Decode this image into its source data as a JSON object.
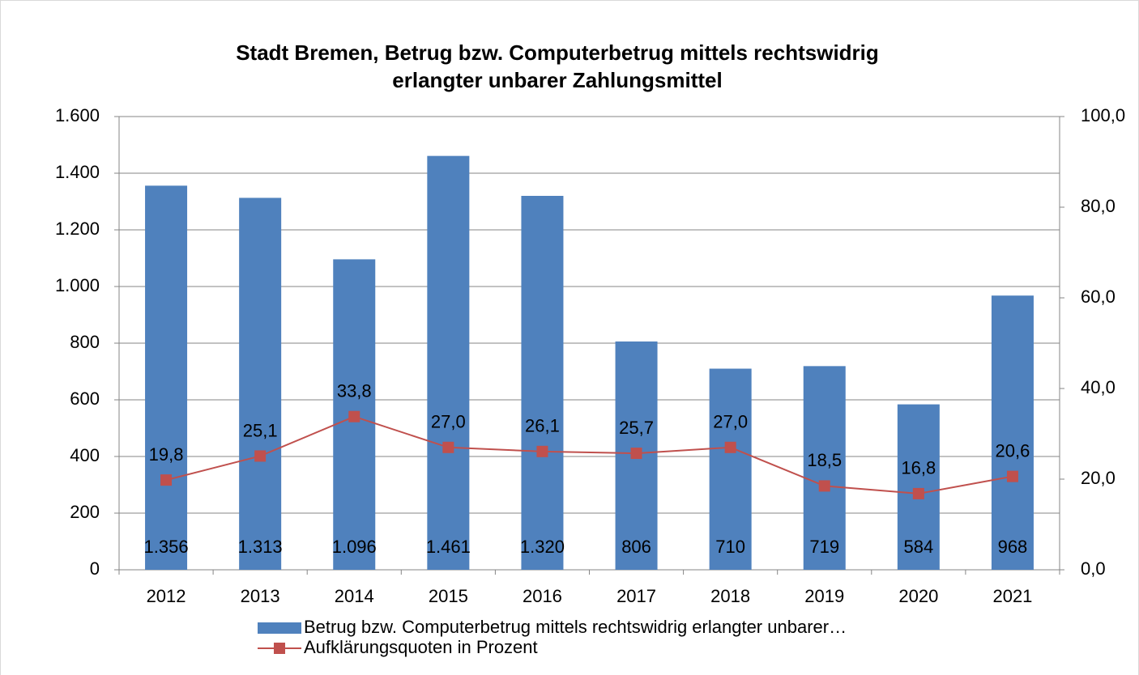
{
  "chart_data": {
    "type": "bar",
    "title": [
      "Stadt Bremen, Betrug bzw. Computerbetrug mittels rechtswidrig",
      "erlangter unbarer Zahlungsmittel"
    ],
    "categories": [
      "2012",
      "2013",
      "2014",
      "2015",
      "2016",
      "2017",
      "2018",
      "2019",
      "2020",
      "2021"
    ],
    "series": [
      {
        "name": "Betrug bzw. Computerbetrug mittels rechtswidrig erlangter unbarer…",
        "type": "bar",
        "color": "#4f81bd",
        "values": [
          1356,
          1313,
          1096,
          1461,
          1320,
          806,
          710,
          719,
          584,
          968
        ],
        "value_labels": [
          "1.356",
          "1.313",
          "1.096",
          "1.461",
          "1.320",
          "806",
          "710",
          "719",
          "584",
          "968"
        ]
      },
      {
        "name": "Aufklärungsquoten in Prozent",
        "type": "line",
        "axis": "y2",
        "color": "#c0504d",
        "values": [
          19.8,
          25.1,
          33.8,
          27.0,
          26.1,
          25.7,
          27.0,
          18.5,
          16.8,
          20.6
        ],
        "value_labels": [
          "19,8",
          "25,1",
          "33,8",
          "27,0",
          "26,1",
          "25,7",
          "27,0",
          "18,5",
          "16,8",
          "20,6"
        ]
      }
    ],
    "ylim": [
      0,
      1600
    ],
    "yticks": [
      0,
      200,
      400,
      600,
      800,
      {
        "value": 1000,
        "label": "1.000"
      },
      {
        "value": 1200,
        "label": "1.200"
      },
      {
        "value": 1400,
        "label": "1.400"
      },
      {
        "value": 1600,
        "label": "1.600"
      }
    ],
    "y2lim": [
      0,
      100
    ],
    "y2ticks": [
      {
        "value": 0,
        "label": "0,0"
      },
      {
        "value": 20,
        "label": "20,0"
      },
      {
        "value": 40,
        "label": "40,0"
      },
      {
        "value": 60,
        "label": "60,0"
      },
      {
        "value": 80,
        "label": "80,0"
      },
      {
        "value": 100,
        "label": "100,0"
      }
    ],
    "grid": true,
    "legend": "bottom"
  }
}
